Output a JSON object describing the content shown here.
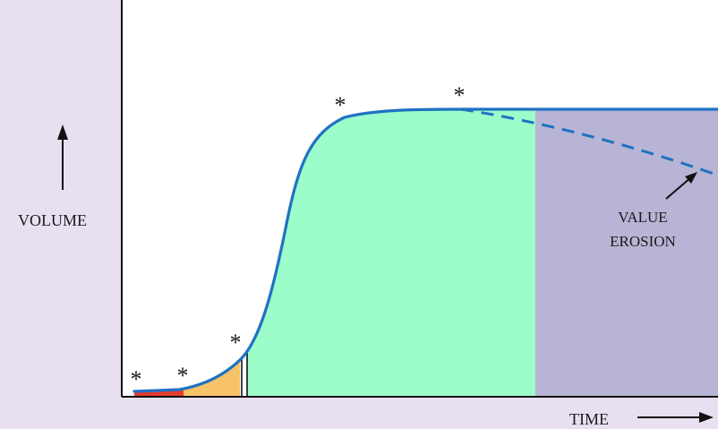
{
  "labels": {
    "y_axis": "VOLUME",
    "x_axis": "TIME",
    "annotation_line1": "VALUE",
    "annotation_line2": "EROSION"
  },
  "markers": [
    "*",
    "*",
    "*",
    "*",
    "*"
  ],
  "colors": {
    "background": "#e8e0f0",
    "plot_background": "#ffffff",
    "curve": "#1f72c2",
    "phase_red": "#e23c2e",
    "phase_orange": "#f7c368",
    "phase_green": "#9cfcca",
    "phase_purple": "#b7b4d5",
    "axis": "#111111"
  }
}
